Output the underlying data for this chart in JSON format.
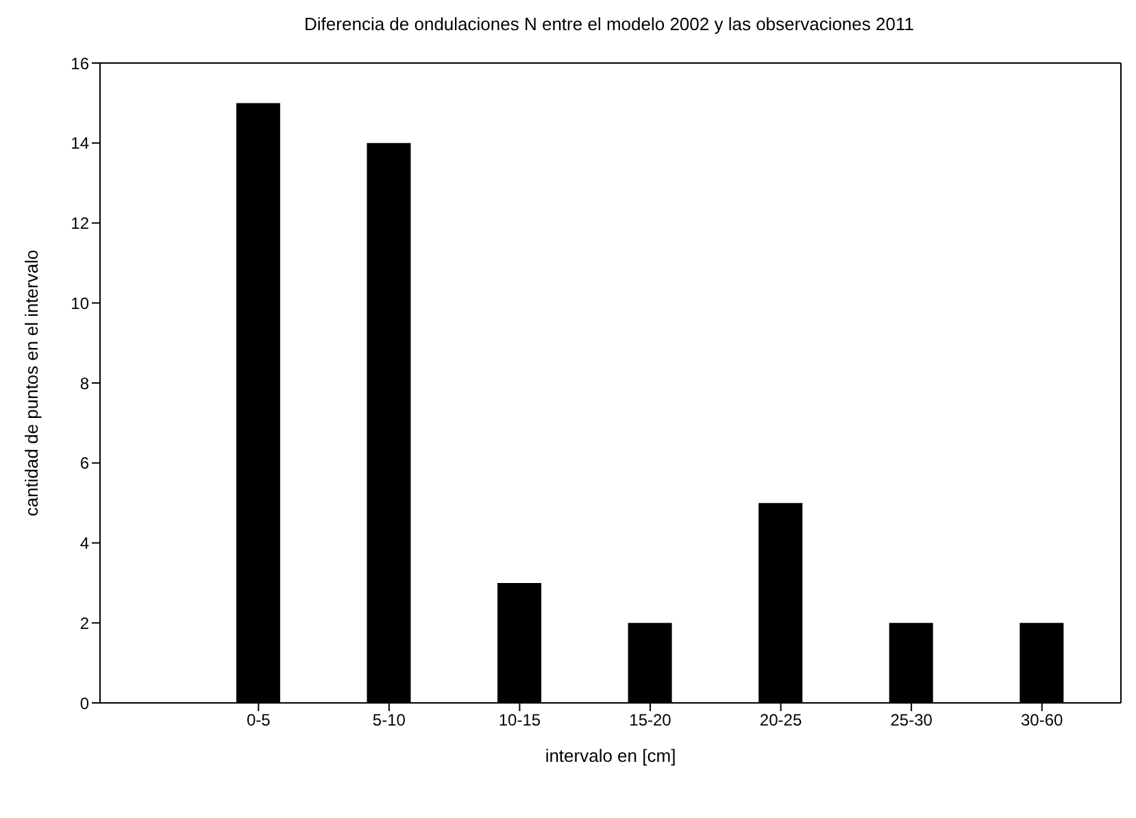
{
  "chart_data": {
    "type": "bar",
    "title": "Diferencia de ondulaciones N entre el modelo 2002 y las observaciones 2011",
    "xlabel": "intervalo en [cm]",
    "ylabel": "cantidad de puntos en el intervalo",
    "categories": [
      "0-5",
      "5-10",
      "10-15",
      "15-20",
      "20-25",
      "25-30",
      "30-60"
    ],
    "values": [
      15,
      14,
      3,
      2,
      5,
      2,
      2
    ],
    "color": "#000000",
    "ylim": [
      0,
      16
    ],
    "yticks": [
      0,
      2,
      4,
      6,
      8,
      10,
      12,
      14,
      16
    ],
    "grid": false,
    "legend": false
  }
}
